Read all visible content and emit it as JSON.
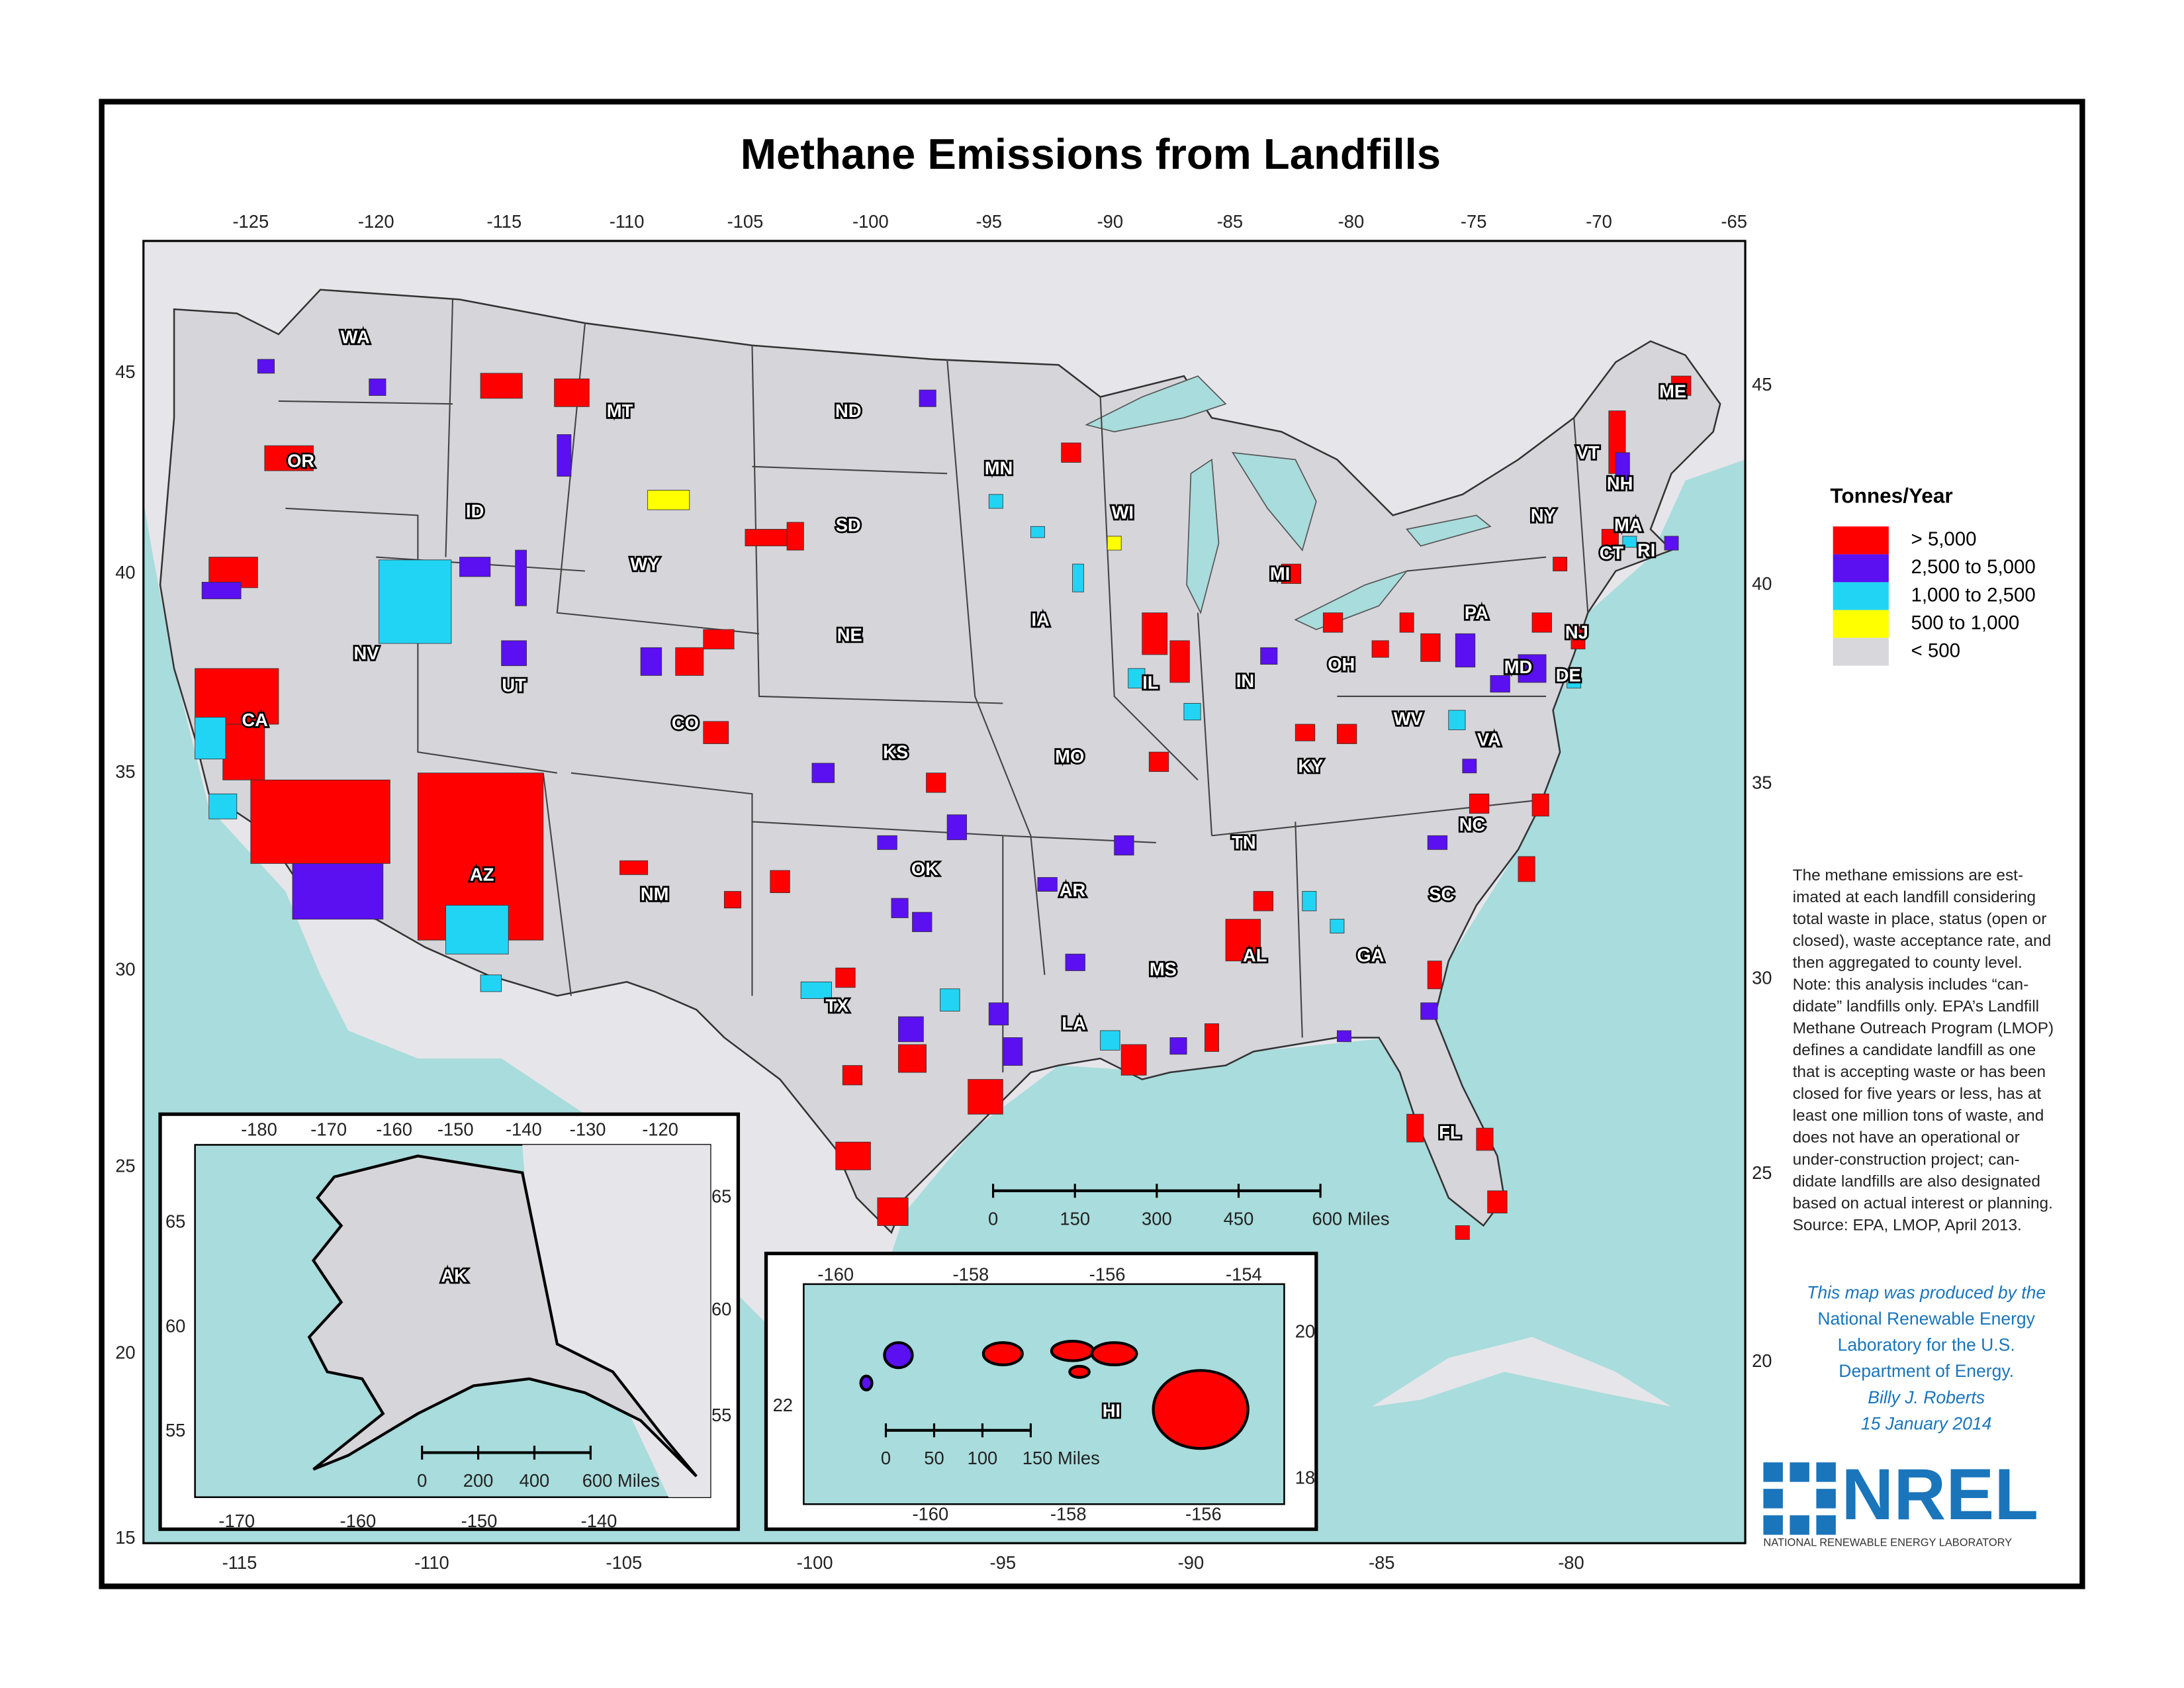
{
  "title": "Methane Emissions from Landfills",
  "map": {
    "lon_labels_top": [
      "-125",
      "-120",
      "-115",
      "-110",
      "-105",
      "-100",
      "-95",
      "-90",
      "-85",
      "-80",
      "-75",
      "-70",
      "-65"
    ],
    "lon_labels_bottom": [
      "-115",
      "-110",
      "-105",
      "-100",
      "-95",
      "-90",
      "-85",
      "-80"
    ],
    "lat_labels_left": [
      "45",
      "40",
      "35",
      "30",
      "25",
      "20",
      "15"
    ],
    "lat_labels_right": [
      "45",
      "40",
      "35",
      "30",
      "25",
      "20"
    ],
    "state_labels": [
      "WA",
      "OR",
      "CA",
      "NV",
      "ID",
      "MT",
      "WY",
      "UT",
      "CO",
      "AZ",
      "NM",
      "ND",
      "SD",
      "NE",
      "KS",
      "OK",
      "TX",
      "MN",
      "IA",
      "MO",
      "AR",
      "LA",
      "WI",
      "IL",
      "MI",
      "IN",
      "OH",
      "KY",
      "TN",
      "MS",
      "AL",
      "GA",
      "FL",
      "SC",
      "NC",
      "VA",
      "WV",
      "PA",
      "NY",
      "VT",
      "NH",
      "ME",
      "MA",
      "CT",
      "RI",
      "NJ",
      "DE",
      "MD"
    ],
    "scale_bar": [
      "0",
      "150",
      "300",
      "450",
      "600 Miles"
    ]
  },
  "legend": {
    "title": "Tonnes/Year",
    "items": [
      {
        "label": "> 5,000",
        "color": "#ff0000"
      },
      {
        "label": "2,500 to 5,000",
        "color": "#5a10f0"
      },
      {
        "label": "1,000 to 2,500",
        "color": "#22d4f4"
      },
      {
        "label": "500 to 1,000",
        "color": "#ffff00"
      },
      {
        "label": "< 500",
        "color": "#d8d8dc"
      }
    ]
  },
  "alaska_inset": {
    "label": "AK",
    "lon_labels_top": [
      "-180",
      "-170",
      "-160",
      "-150",
      "-140",
      "-130",
      "-120"
    ],
    "lon_labels_bottom": [
      "-170",
      "-160",
      "-150",
      "-140"
    ],
    "lat_labels_left": [
      "65",
      "60",
      "55"
    ],
    "lat_labels_right": [
      "65",
      "60",
      "55"
    ],
    "scale_bar": [
      "0",
      "200",
      "400",
      "600 Miles"
    ]
  },
  "hawaii_inset": {
    "label": "HI",
    "lon_labels_top": [
      "-160",
      "-158",
      "-156",
      "-154"
    ],
    "lon_labels_bottom": [
      "-160",
      "-158",
      "-156"
    ],
    "lat_labels_left": [
      "22"
    ],
    "lat_labels_right": [
      "20",
      "18"
    ],
    "scale_bar": [
      "0",
      "50",
      "100",
      "150 Miles"
    ]
  },
  "note": [
    "The methane emissions are est-",
    "imated at each landfill considering",
    "total waste in place, status (open or",
    "closed), waste acceptance rate, and",
    "then aggregated to county level.",
    "Note: this analysis includes “can-",
    "didate” landfills only.  EPA’s Landfill",
    "Methane Outreach Program (LMOP)",
    "defines a candidate landfill as one",
    "that is accepting waste or has been",
    "closed for five years or less, has at",
    "least one million tons of waste, and",
    "does not have an operational or",
    "under-construction project; can-",
    "didate landfills are also designated",
    "based on actual interest or planning.",
    "Source: EPA, LMOP, April 2013."
  ],
  "credit": [
    "This map was produced by the",
    "National Renewable Energy",
    "Laboratory for the U.S.",
    "Department of Energy.",
    "Billy J. Roberts",
    "15 January 2014"
  ],
  "logo": {
    "name": "NREL",
    "tagline": "NATIONAL RENEWABLE ENERGY LABORATORY"
  }
}
